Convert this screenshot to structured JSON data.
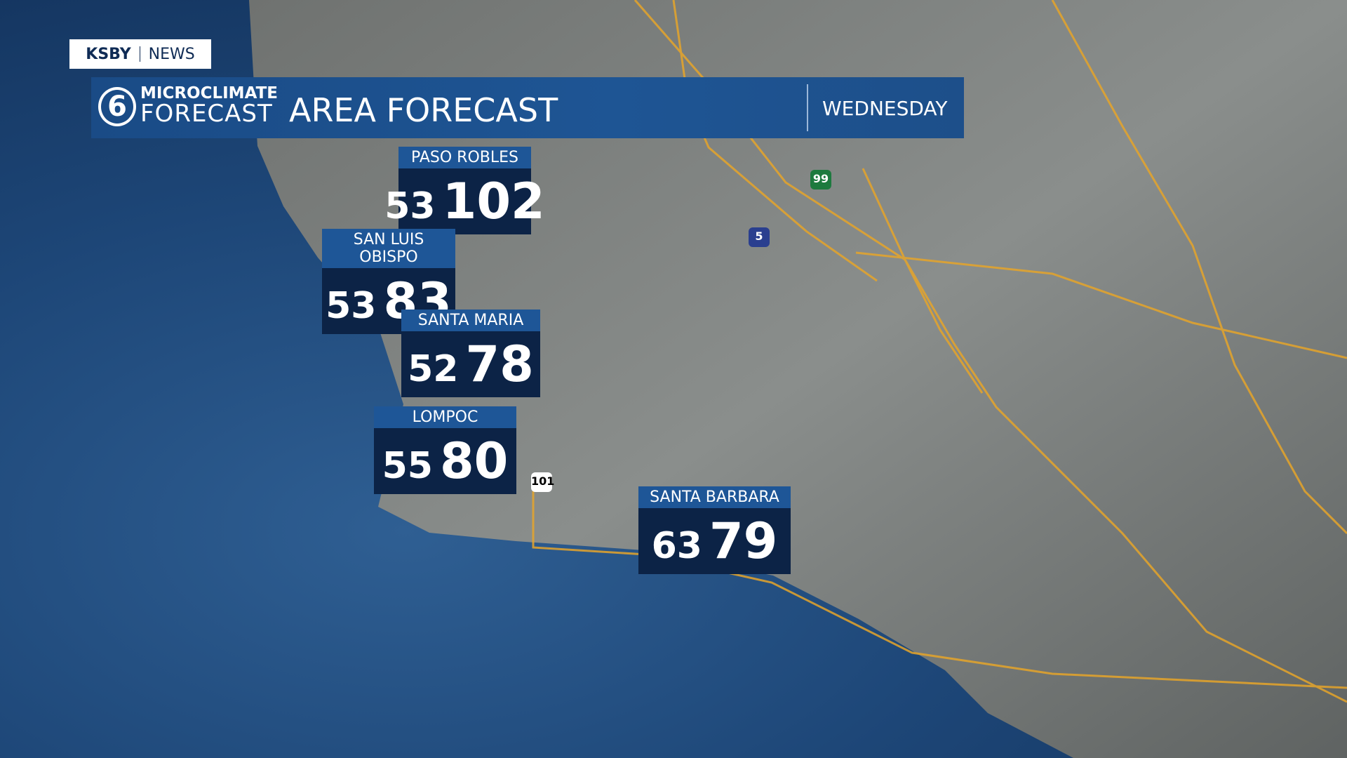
{
  "brand": {
    "station": "KSBY",
    "section": "NEWS"
  },
  "logo": {
    "line1": "MICROCLIMATE",
    "line2": "FORECAST"
  },
  "header": {
    "title": "AREA FORECAST",
    "day": "WEDNESDAY"
  },
  "cities": [
    {
      "name": "PASO ROBLES",
      "low": 53,
      "high": 102
    },
    {
      "name": "SAN LUIS OBISPO",
      "low": 53,
      "high": 83
    },
    {
      "name": "SANTA MARIA",
      "low": 52,
      "high": 78
    },
    {
      "name": "LOMPOC",
      "low": 55,
      "high": 80
    },
    {
      "name": "SANTA BARBARA",
      "low": 63,
      "high": 79
    }
  ],
  "shields": [
    "99",
    "5",
    "101"
  ]
}
